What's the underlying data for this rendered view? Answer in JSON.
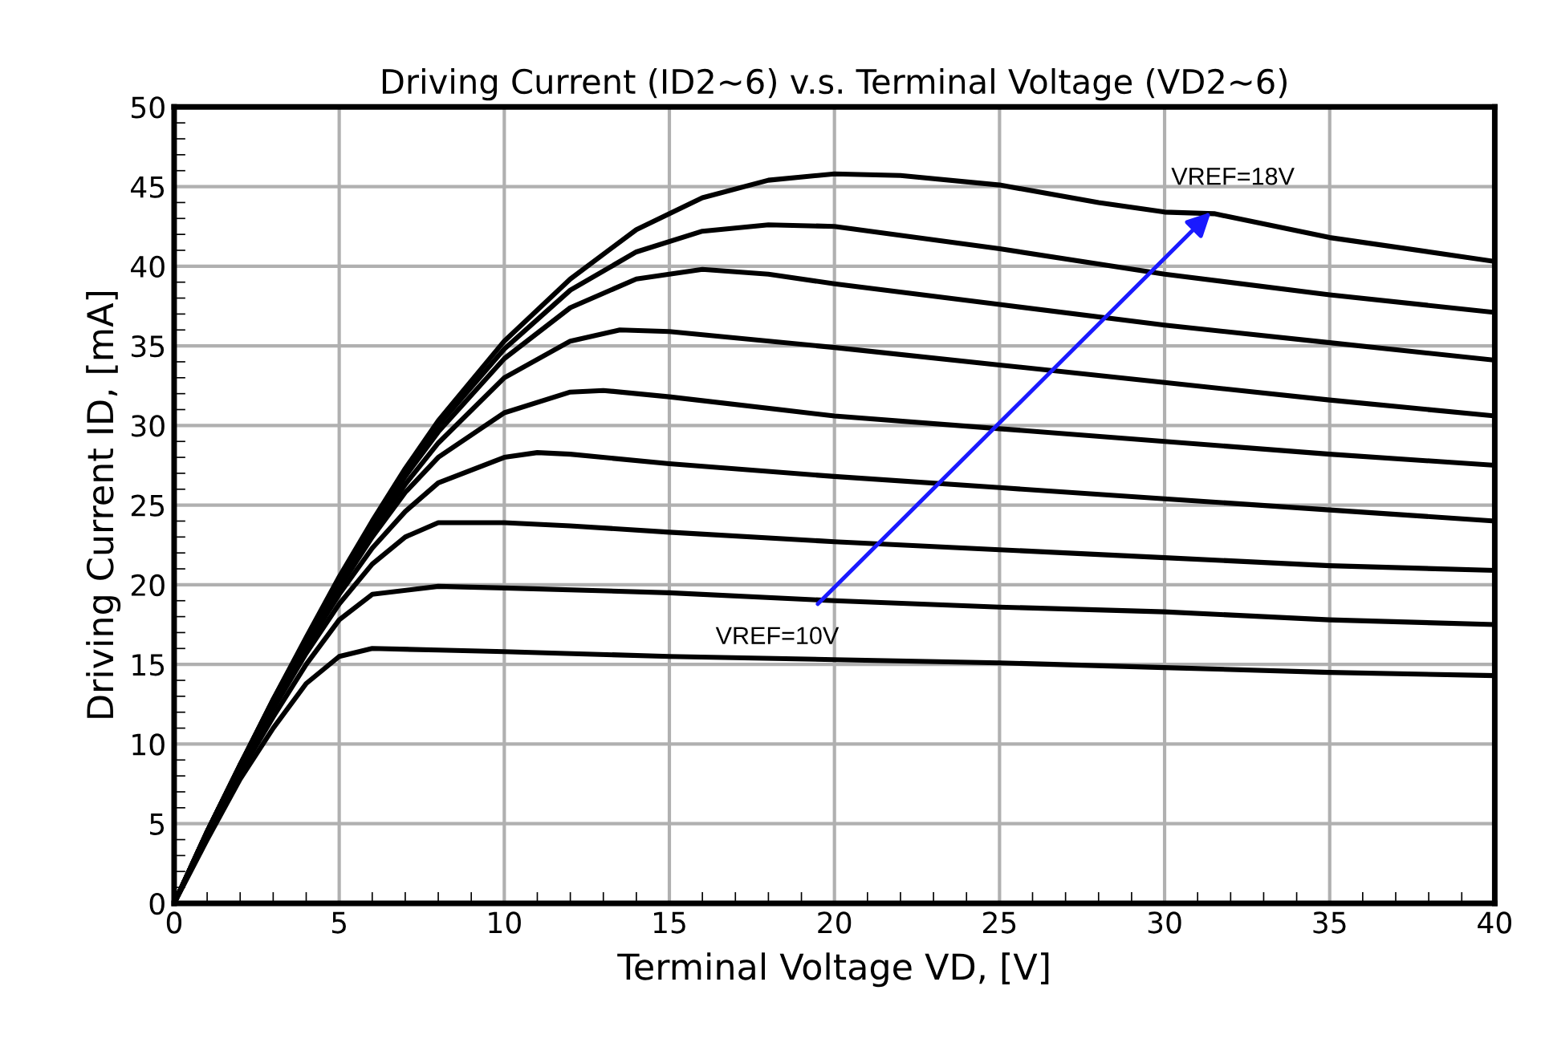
{
  "chart_data": {
    "type": "line",
    "title": "Driving Current (ID2~6) v.s. Terminal Voltage (VD2~6)",
    "xlabel": "Terminal Voltage VD, [V]",
    "ylabel": "Driving Current ID, [mA]",
    "xlim": [
      0,
      40
    ],
    "ylim": [
      0,
      50
    ],
    "xticks": [
      0,
      5,
      10,
      15,
      20,
      25,
      30,
      35,
      40
    ],
    "yticks": [
      0,
      5,
      10,
      15,
      20,
      25,
      30,
      35,
      40,
      45,
      50
    ],
    "grid": true,
    "legend": false,
    "marker": "none",
    "line_style": "solid",
    "annotations": [
      {
        "text": "VREF=10V",
        "x": 19.4,
        "y": 18.6
      },
      {
        "text": "VREF=18V",
        "x": 31.5,
        "y": 43.6
      }
    ],
    "series": [
      {
        "color": "#000000",
        "x": [
          0,
          1,
          2,
          3,
          4,
          5,
          6,
          8,
          10,
          15,
          20,
          25,
          30,
          35,
          40
        ],
        "values": [
          0,
          4,
          7.8,
          11,
          13.8,
          15.5,
          16,
          15.9,
          15.8,
          15.5,
          15.3,
          15.1,
          14.8,
          14.5,
          14.3
        ]
      },
      {
        "color": "#000000",
        "x": [
          0,
          1,
          2,
          3,
          4,
          5,
          6,
          8,
          10,
          15,
          20,
          25,
          30,
          35,
          40
        ],
        "values": [
          0,
          4.2,
          8.2,
          11.7,
          15,
          17.8,
          19.4,
          19.9,
          19.8,
          19.5,
          19,
          18.6,
          18.3,
          17.8,
          17.5
        ]
      },
      {
        "color": "#000000",
        "x": [
          0,
          1,
          2,
          3,
          4,
          5,
          6,
          7,
          8,
          10,
          12,
          15,
          20,
          25,
          30,
          35,
          40
        ],
        "values": [
          0,
          4.3,
          8.4,
          12.2,
          15.7,
          18.8,
          21.3,
          23,
          23.9,
          23.9,
          23.7,
          23.3,
          22.7,
          22.2,
          21.7,
          21.2,
          20.9
        ]
      },
      {
        "color": "#000000",
        "x": [
          0,
          1,
          2,
          3,
          4,
          5,
          6,
          7,
          8,
          10,
          11,
          12,
          15,
          20,
          25,
          30,
          35,
          40
        ],
        "values": [
          0,
          4.4,
          8.5,
          12.4,
          16.1,
          19.4,
          22.3,
          24.6,
          26.4,
          28,
          28.3,
          28.2,
          27.6,
          26.8,
          26.1,
          25.4,
          24.7,
          24
        ]
      },
      {
        "color": "#000000",
        "x": [
          0,
          1,
          2,
          3,
          4,
          5,
          6,
          7,
          8,
          10,
          12,
          13,
          15,
          20,
          25,
          30,
          35,
          40
        ],
        "values": [
          0,
          4.4,
          8.6,
          12.5,
          16.3,
          19.8,
          23,
          25.8,
          28,
          30.8,
          32.1,
          32.2,
          31.8,
          30.6,
          29.8,
          29,
          28.2,
          27.5
        ]
      },
      {
        "color": "#000000",
        "x": [
          0,
          1,
          2,
          3,
          4,
          5,
          6,
          7,
          8,
          10,
          12,
          13.5,
          15,
          20,
          25,
          30,
          35,
          40
        ],
        "values": [
          0,
          4.5,
          8.7,
          12.6,
          16.4,
          20,
          23.3,
          26.3,
          28.9,
          33,
          35.3,
          36,
          35.9,
          34.9,
          33.8,
          32.7,
          31.6,
          30.6
        ]
      },
      {
        "color": "#000000",
        "x": [
          0,
          1,
          2,
          3,
          4,
          5,
          6,
          7,
          8,
          10,
          12,
          14,
          16,
          18,
          20,
          25,
          30,
          35,
          40
        ],
        "values": [
          0,
          4.5,
          8.7,
          12.7,
          16.5,
          20.2,
          23.6,
          26.8,
          29.6,
          34.2,
          37.4,
          39.2,
          39.8,
          39.5,
          38.9,
          37.6,
          36.3,
          35.2,
          34.1
        ]
      },
      {
        "color": "#000000",
        "x": [
          0,
          1,
          2,
          3,
          4,
          5,
          6,
          7,
          8,
          10,
          12,
          14,
          16,
          18,
          20,
          25,
          30,
          35,
          40
        ],
        "values": [
          0,
          4.5,
          8.7,
          12.8,
          16.6,
          20.3,
          23.8,
          27,
          30,
          34.8,
          38.5,
          40.9,
          42.2,
          42.6,
          42.5,
          41.1,
          39.5,
          38.2,
          37.1
        ]
      },
      {
        "color": "#000000",
        "x": [
          0,
          1,
          2,
          3,
          4,
          5,
          6,
          7,
          8,
          10,
          12,
          14,
          16,
          18,
          20,
          22,
          25,
          28,
          30,
          31.5,
          35,
          40
        ],
        "values": [
          0,
          4.5,
          8.7,
          12.8,
          16.7,
          20.5,
          24,
          27.3,
          30.3,
          35.3,
          39.2,
          42.3,
          44.3,
          45.4,
          45.8,
          45.7,
          45.1,
          44,
          43.4,
          43.3,
          41.8,
          40.3
        ]
      }
    ]
  }
}
